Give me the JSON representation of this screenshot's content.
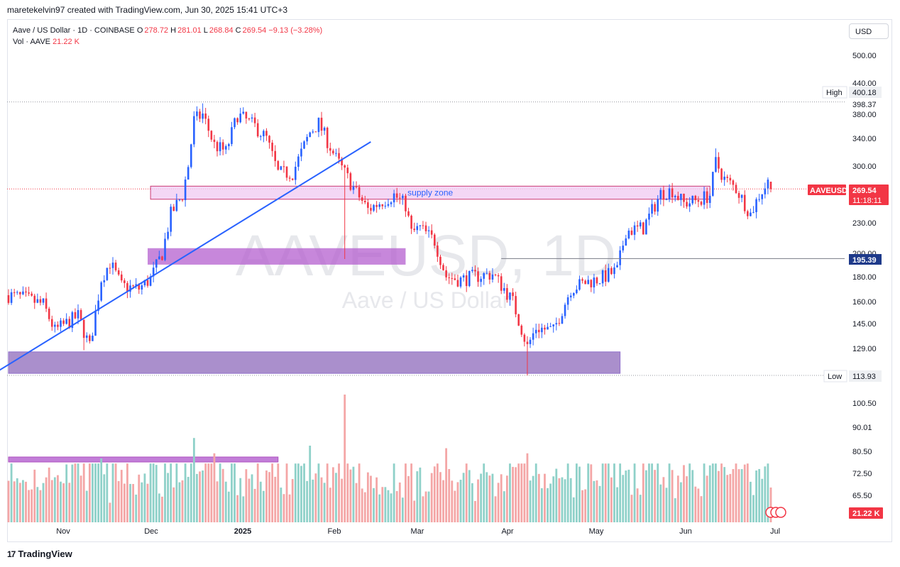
{
  "header": {
    "attribution": "maretekelvin97 created with TradingView.com, Jun 30, 2025 15:41 UTC+3"
  },
  "legend": {
    "symbol": "Aave / US Dollar · 1D · COINBASE",
    "o_label": "O",
    "o": "278.72",
    "h_label": "H",
    "h": "281.01",
    "l_label": "L",
    "l": "268.84",
    "c_label": "C",
    "c": "269.54",
    "change": "−9.13 (−3.28%)",
    "vol_label": "Vol · AAVE",
    "vol": "21.22 K"
  },
  "currency_button": "USD",
  "watermark": {
    "main": "AAVEUSD, 1D",
    "sub": "Aave / US Dollar"
  },
  "footer": {
    "brand": "TradingView",
    "logo": "17"
  },
  "colors": {
    "up": "#26a69a",
    "down": "#ef5350",
    "trendline": "#2962ff",
    "supply_fill": "#f3d1f4",
    "supply_border": "#c2185b",
    "zone_fill": "#b45fcf",
    "demand_fill": "#9c7cc4",
    "vol_up": "#8fd1c9",
    "vol_down": "#f4a6a6"
  },
  "chart_data": {
    "type": "candlestick",
    "title": "Aave / US Dollar · 1D · COINBASE",
    "price_axis": {
      "scale": "log",
      "ylim": [
        110,
        520
      ],
      "ticks": [
        "500.00",
        "440.00",
        "398.37",
        "380.00",
        "340.00",
        "300.00",
        "230.00",
        "200.00",
        "180.00",
        "160.00",
        "145.00",
        "129.00"
      ],
      "high_label": "High",
      "high": "400.18",
      "low_label": "Low",
      "low": "113.93",
      "last_symbol": "AAVEUSD",
      "last_price": "269.54",
      "countdown": "11:18:11",
      "level_195": "195.39"
    },
    "volume_axis": {
      "ticks": [
        "100.50",
        "90.01",
        "80.50",
        "72.50",
        "65.50"
      ],
      "current": "21.22 K"
    },
    "x_axis": {
      "labels": [
        "Nov",
        "Dec",
        "2025",
        "Feb",
        "Mar",
        "Apr",
        "May",
        "Jun",
        "Jul"
      ]
    },
    "annotations": {
      "supply_zone": {
        "label": "supply zone",
        "price_low": 257,
        "price_high": 273,
        "from": "2024-11-28",
        "to": "2025-06-09"
      },
      "zone_mid": {
        "price_low": 190,
        "price_high": 205,
        "from": "2024-11-27",
        "to": "2025-02-24"
      },
      "zone_demand": {
        "price_low": 115,
        "price_high": 127,
        "from": "2024-10-10",
        "to": "2025-05-09"
      },
      "volume_box": {
        "from": "2024-10-10",
        "to": "2025-01-11"
      },
      "trendline": {
        "from_date": "2024-10-15",
        "from_price": 114,
        "to_date": "2025-02-11",
        "to_price": 335
      },
      "level_line": {
        "price": 195.39,
        "from": "2025-03-29"
      }
    },
    "anchors": [
      [
        "2024-10-10",
        165
      ],
      [
        "2024-10-15",
        163
      ],
      [
        "2024-10-22",
        158
      ],
      [
        "2024-10-26",
        140
      ],
      [
        "2024-11-03",
        150
      ],
      [
        "2024-11-07",
        130
      ],
      [
        "2024-11-11",
        178
      ],
      [
        "2024-11-14",
        192
      ],
      [
        "2024-11-18",
        172
      ],
      [
        "2024-11-24",
        170
      ],
      [
        "2024-11-28",
        178
      ],
      [
        "2024-12-02",
        200
      ],
      [
        "2024-12-05",
        240
      ],
      [
        "2024-12-09",
        262
      ],
      [
        "2024-12-11",
        300
      ],
      [
        "2024-12-13",
        370
      ],
      [
        "2024-12-16",
        380
      ],
      [
        "2024-12-20",
        330
      ],
      [
        "2024-12-24",
        320
      ],
      [
        "2024-12-28",
        380
      ],
      [
        "2025-01-03",
        360
      ],
      [
        "2025-01-07",
        340
      ],
      [
        "2025-01-11",
        290
      ],
      [
        "2025-01-16",
        290
      ],
      [
        "2025-01-22",
        350
      ],
      [
        "2025-01-25",
        365
      ],
      [
        "2025-01-31",
        310
      ],
      [
        "2025-02-03",
        290
      ],
      [
        "2025-02-07",
        265
      ],
      [
        "2025-02-11",
        245
      ],
      [
        "2025-02-16",
        255
      ],
      [
        "2025-02-20",
        262
      ],
      [
        "2025-02-24",
        250
      ],
      [
        "2025-02-26",
        220
      ],
      [
        "2025-03-01",
        225
      ],
      [
        "2025-03-06",
        212
      ],
      [
        "2025-03-10",
        180
      ],
      [
        "2025-03-15",
        177
      ],
      [
        "2025-03-20",
        180
      ],
      [
        "2025-03-26",
        182
      ],
      [
        "2025-03-30",
        170
      ],
      [
        "2025-04-02",
        160
      ],
      [
        "2025-04-07",
        130
      ],
      [
        "2025-04-10",
        142
      ],
      [
        "2025-04-16",
        140
      ],
      [
        "2025-04-22",
        170
      ],
      [
        "2025-04-27",
        175
      ],
      [
        "2025-05-02",
        178
      ],
      [
        "2025-05-08",
        185
      ],
      [
        "2025-05-11",
        222
      ],
      [
        "2025-05-17",
        225
      ],
      [
        "2025-05-23",
        264
      ],
      [
        "2025-05-27",
        268
      ],
      [
        "2025-05-31",
        252
      ],
      [
        "2025-06-05",
        256
      ],
      [
        "2025-06-09",
        262
      ],
      [
        "2025-06-11",
        305
      ],
      [
        "2025-06-14",
        282
      ],
      [
        "2025-06-18",
        270
      ],
      [
        "2025-06-21",
        252
      ],
      [
        "2025-06-23",
        240
      ],
      [
        "2025-06-26",
        262
      ],
      [
        "2025-06-29",
        278
      ],
      [
        "2025-06-30",
        269.54
      ]
    ]
  }
}
